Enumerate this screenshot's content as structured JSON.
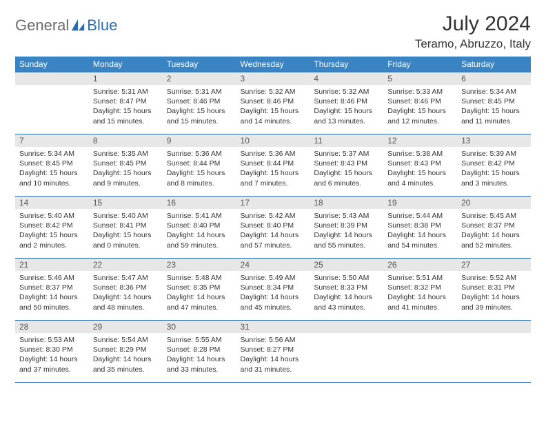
{
  "brand": {
    "word1": "General",
    "word2": "Blue"
  },
  "title": "July 2024",
  "location": "Teramo, Abruzzo, Italy",
  "colors": {
    "header_bg": "#3b84c4",
    "header_text": "#ffffff",
    "border": "#2a6db0",
    "daynum_bg": "#e7e7e7",
    "brand_gray": "#6b6b6b",
    "brand_blue": "#2a6db0"
  },
  "dayNames": [
    "Sunday",
    "Monday",
    "Tuesday",
    "Wednesday",
    "Thursday",
    "Friday",
    "Saturday"
  ],
  "layout": {
    "leadingBlanks": 1,
    "daysInMonth": 31,
    "rows": 5,
    "cols": 7
  },
  "days": [
    {
      "n": 1,
      "sunrise": "5:31 AM",
      "sunset": "8:47 PM",
      "daylight": "15 hours and 15 minutes."
    },
    {
      "n": 2,
      "sunrise": "5:31 AM",
      "sunset": "8:46 PM",
      "daylight": "15 hours and 15 minutes."
    },
    {
      "n": 3,
      "sunrise": "5:32 AM",
      "sunset": "8:46 PM",
      "daylight": "15 hours and 14 minutes."
    },
    {
      "n": 4,
      "sunrise": "5:32 AM",
      "sunset": "8:46 PM",
      "daylight": "15 hours and 13 minutes."
    },
    {
      "n": 5,
      "sunrise": "5:33 AM",
      "sunset": "8:46 PM",
      "daylight": "15 hours and 12 minutes."
    },
    {
      "n": 6,
      "sunrise": "5:34 AM",
      "sunset": "8:45 PM",
      "daylight": "15 hours and 11 minutes."
    },
    {
      "n": 7,
      "sunrise": "5:34 AM",
      "sunset": "8:45 PM",
      "daylight": "15 hours and 10 minutes."
    },
    {
      "n": 8,
      "sunrise": "5:35 AM",
      "sunset": "8:45 PM",
      "daylight": "15 hours and 9 minutes."
    },
    {
      "n": 9,
      "sunrise": "5:36 AM",
      "sunset": "8:44 PM",
      "daylight": "15 hours and 8 minutes."
    },
    {
      "n": 10,
      "sunrise": "5:36 AM",
      "sunset": "8:44 PM",
      "daylight": "15 hours and 7 minutes."
    },
    {
      "n": 11,
      "sunrise": "5:37 AM",
      "sunset": "8:43 PM",
      "daylight": "15 hours and 6 minutes."
    },
    {
      "n": 12,
      "sunrise": "5:38 AM",
      "sunset": "8:43 PM",
      "daylight": "15 hours and 4 minutes."
    },
    {
      "n": 13,
      "sunrise": "5:39 AM",
      "sunset": "8:42 PM",
      "daylight": "15 hours and 3 minutes."
    },
    {
      "n": 14,
      "sunrise": "5:40 AM",
      "sunset": "8:42 PM",
      "daylight": "15 hours and 2 minutes."
    },
    {
      "n": 15,
      "sunrise": "5:40 AM",
      "sunset": "8:41 PM",
      "daylight": "15 hours and 0 minutes."
    },
    {
      "n": 16,
      "sunrise": "5:41 AM",
      "sunset": "8:40 PM",
      "daylight": "14 hours and 59 minutes."
    },
    {
      "n": 17,
      "sunrise": "5:42 AM",
      "sunset": "8:40 PM",
      "daylight": "14 hours and 57 minutes."
    },
    {
      "n": 18,
      "sunrise": "5:43 AM",
      "sunset": "8:39 PM",
      "daylight": "14 hours and 55 minutes."
    },
    {
      "n": 19,
      "sunrise": "5:44 AM",
      "sunset": "8:38 PM",
      "daylight": "14 hours and 54 minutes."
    },
    {
      "n": 20,
      "sunrise": "5:45 AM",
      "sunset": "8:37 PM",
      "daylight": "14 hours and 52 minutes."
    },
    {
      "n": 21,
      "sunrise": "5:46 AM",
      "sunset": "8:37 PM",
      "daylight": "14 hours and 50 minutes."
    },
    {
      "n": 22,
      "sunrise": "5:47 AM",
      "sunset": "8:36 PM",
      "daylight": "14 hours and 48 minutes."
    },
    {
      "n": 23,
      "sunrise": "5:48 AM",
      "sunset": "8:35 PM",
      "daylight": "14 hours and 47 minutes."
    },
    {
      "n": 24,
      "sunrise": "5:49 AM",
      "sunset": "8:34 PM",
      "daylight": "14 hours and 45 minutes."
    },
    {
      "n": 25,
      "sunrise": "5:50 AM",
      "sunset": "8:33 PM",
      "daylight": "14 hours and 43 minutes."
    },
    {
      "n": 26,
      "sunrise": "5:51 AM",
      "sunset": "8:32 PM",
      "daylight": "14 hours and 41 minutes."
    },
    {
      "n": 27,
      "sunrise": "5:52 AM",
      "sunset": "8:31 PM",
      "daylight": "14 hours and 39 minutes."
    },
    {
      "n": 28,
      "sunrise": "5:53 AM",
      "sunset": "8:30 PM",
      "daylight": "14 hours and 37 minutes."
    },
    {
      "n": 29,
      "sunrise": "5:54 AM",
      "sunset": "8:29 PM",
      "daylight": "14 hours and 35 minutes."
    },
    {
      "n": 30,
      "sunrise": "5:55 AM",
      "sunset": "8:28 PM",
      "daylight": "14 hours and 33 minutes."
    },
    {
      "n": 31,
      "sunrise": "5:56 AM",
      "sunset": "8:27 PM",
      "daylight": "14 hours and 31 minutes."
    }
  ],
  "labels": {
    "sunrise": "Sunrise:",
    "sunset": "Sunset:",
    "daylight": "Daylight:"
  }
}
